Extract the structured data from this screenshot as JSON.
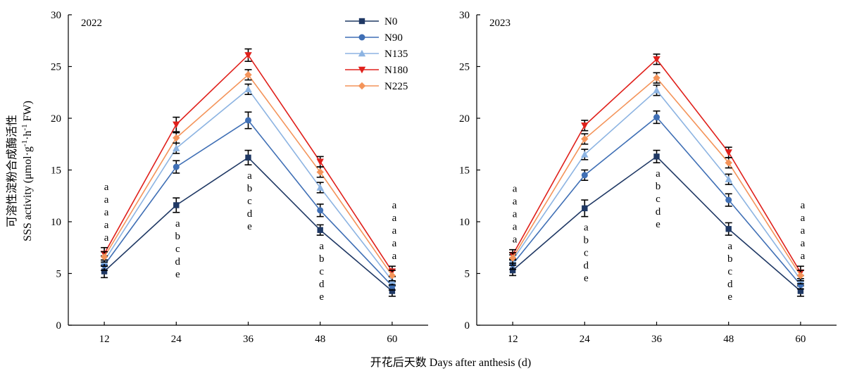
{
  "figure": {
    "ylabel_cn": "可溶性淀粉合成酶活性",
    "ylabel_en": "SSS activity (μmol·g",
    "ylabel_sup1": "-1",
    "ylabel_mid": "·h",
    "ylabel_sup2": "-1",
    "ylabel_end": " FW)",
    "xlabel": "开花后天数 Days after anthesis (d)"
  },
  "chart_data": [
    {
      "type": "line",
      "panel_label": "2022",
      "x": [
        12,
        24,
        36,
        48,
        60
      ],
      "xticks": [
        "12",
        "24",
        "36",
        "48",
        "60"
      ],
      "ylim": [
        0,
        30
      ],
      "yticks": [
        "0",
        "5",
        "10",
        "15",
        "20",
        "25",
        "30"
      ],
      "grid": false,
      "legend_position": "top-center",
      "series": [
        {
          "name": "N0",
          "color": "#1F3864",
          "marker": "square",
          "values": [
            5.2,
            11.6,
            16.2,
            9.2,
            3.3
          ],
          "err": [
            0.6,
            0.7,
            0.7,
            0.5,
            0.5
          ]
        },
        {
          "name": "N90",
          "color": "#3F6FB5",
          "marker": "circle",
          "values": [
            5.8,
            15.3,
            19.8,
            11.1,
            3.8
          ],
          "err": [
            0.5,
            0.6,
            0.8,
            0.6,
            0.4
          ]
        },
        {
          "name": "N135",
          "color": "#8DB4E2",
          "marker": "triangle-up",
          "values": [
            6.2,
            17.1,
            22.8,
            13.3,
            4.3
          ],
          "err": [
            0.5,
            0.5,
            0.5,
            0.5,
            0.4
          ]
        },
        {
          "name": "N180",
          "color": "#E0201B",
          "marker": "triangle-down",
          "values": [
            6.9,
            19.4,
            26.1,
            15.8,
            5.2
          ],
          "err": [
            0.6,
            0.7,
            0.6,
            0.5,
            0.5
          ]
        },
        {
          "name": "N225",
          "color": "#F4945A",
          "marker": "diamond",
          "values": [
            6.6,
            18.1,
            24.2,
            14.8,
            4.8
          ],
          "err": [
            0.5,
            0.5,
            0.5,
            0.5,
            0.5
          ]
        }
      ],
      "annotations": [
        {
          "x": 12,
          "letters": [
            "a",
            "a",
            "a",
            "a",
            "a"
          ],
          "placement": "above"
        },
        {
          "x": 24,
          "letters": [
            "a",
            "b",
            "c",
            "d",
            "e"
          ],
          "placement": "below"
        },
        {
          "x": 36,
          "letters": [
            "a",
            "b",
            "c",
            "d",
            "e"
          ],
          "placement": "below"
        },
        {
          "x": 48,
          "letters": [
            "a",
            "b",
            "c",
            "d",
            "e"
          ],
          "placement": "below"
        },
        {
          "x": 60,
          "letters": [
            "a",
            "a",
            "a",
            "a",
            "a"
          ],
          "placement": "above"
        }
      ]
    },
    {
      "type": "line",
      "panel_label": "2023",
      "x": [
        12,
        24,
        36,
        48,
        60
      ],
      "xticks": [
        "12",
        "24",
        "36",
        "48",
        "60"
      ],
      "ylim": [
        0,
        30
      ],
      "yticks": [
        "0",
        "5",
        "10",
        "15",
        "20",
        "25",
        "30"
      ],
      "grid": false,
      "series": [
        {
          "name": "N0",
          "color": "#1F3864",
          "marker": "square",
          "values": [
            5.3,
            11.3,
            16.3,
            9.3,
            3.3
          ],
          "err": [
            0.5,
            0.8,
            0.6,
            0.6,
            0.5
          ]
        },
        {
          "name": "N90",
          "color": "#3F6FB5",
          "marker": "circle",
          "values": [
            5.9,
            14.5,
            20.1,
            12.1,
            3.9
          ],
          "err": [
            0.5,
            0.5,
            0.6,
            0.6,
            0.4
          ]
        },
        {
          "name": "N135",
          "color": "#8DB4E2",
          "marker": "triangle-up",
          "values": [
            6.3,
            16.5,
            22.7,
            14.1,
            4.4
          ],
          "err": [
            0.5,
            0.5,
            0.5,
            0.5,
            0.4
          ]
        },
        {
          "name": "N180",
          "color": "#E0201B",
          "marker": "triangle-down",
          "values": [
            6.8,
            19.3,
            25.7,
            16.7,
            5.1
          ],
          "err": [
            0.5,
            0.5,
            0.5,
            0.5,
            0.6
          ]
        },
        {
          "name": "N225",
          "color": "#F4945A",
          "marker": "diamond",
          "values": [
            6.5,
            18.0,
            23.9,
            15.7,
            4.8
          ],
          "err": [
            0.5,
            0.5,
            0.5,
            0.5,
            0.5
          ]
        }
      ],
      "annotations": [
        {
          "x": 12,
          "letters": [
            "a",
            "a",
            "a",
            "a",
            "a"
          ],
          "placement": "above"
        },
        {
          "x": 24,
          "letters": [
            "a",
            "b",
            "c",
            "d",
            "e"
          ],
          "placement": "below"
        },
        {
          "x": 36,
          "letters": [
            "a",
            "b",
            "c",
            "d",
            "e"
          ],
          "placement": "below"
        },
        {
          "x": 48,
          "letters": [
            "a",
            "b",
            "c",
            "d",
            "e"
          ],
          "placement": "below"
        },
        {
          "x": 60,
          "letters": [
            "a",
            "a",
            "a",
            "a",
            "a"
          ],
          "placement": "above"
        }
      ]
    }
  ]
}
